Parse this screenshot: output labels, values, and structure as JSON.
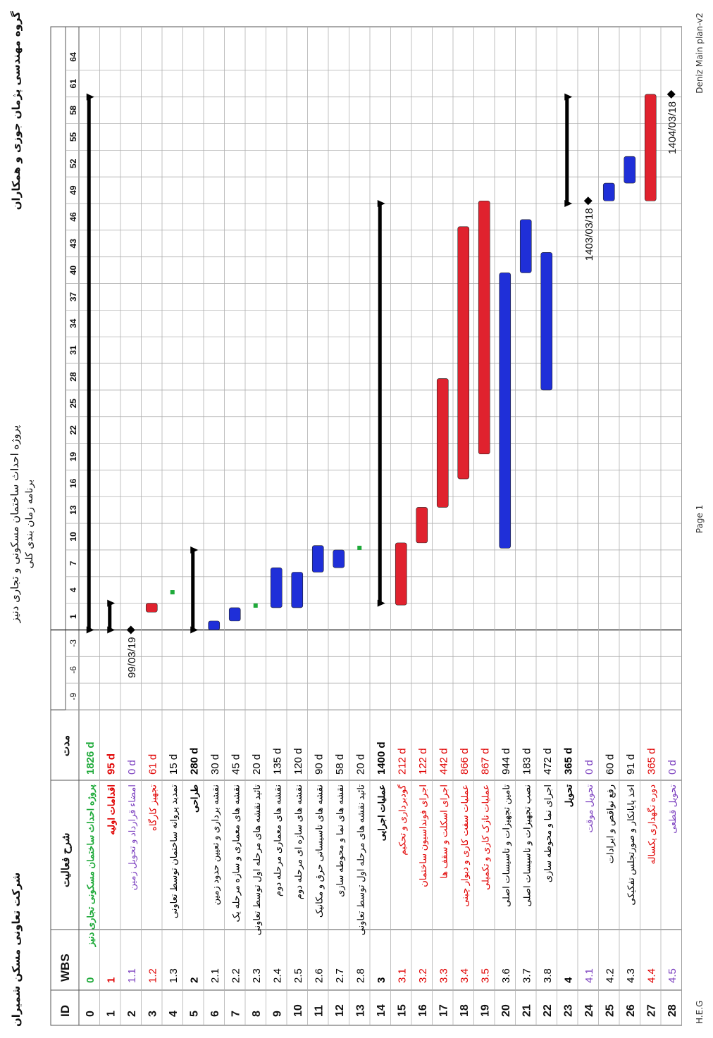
{
  "header": {
    "company": "شرکت تعاونی مسکن شمیران",
    "project_title": "پروژه احداث ساختمان مسکونی و تجاری دنیز",
    "schedule_title": "برنامه زمان بندی کلی",
    "group": "گروه مهندسی پژمان جوزی و همکاران"
  },
  "footer": {
    "left": "H.E.G",
    "center": "Page 1",
    "right": "Deniz Main plan-v2"
  },
  "table_headers": {
    "id": "ID",
    "wbs": "WBS",
    "name": "شرح فعالیت",
    "duration": "مدت"
  },
  "timescale_labels": [
    "-9",
    "-6",
    "-3",
    "1",
    "4",
    "7",
    "10",
    "13",
    "16",
    "19",
    "22",
    "25",
    "28",
    "31",
    "34",
    "37",
    "40",
    "43",
    "46",
    "49",
    "52",
    "55",
    "58",
    "61",
    "64"
  ],
  "colors": {
    "green": "#1faa3a",
    "red": "#e00000",
    "purple": "#7b3fbf",
    "black": "#000000",
    "bar_red": "#e0222e",
    "bar_blue": "#1f2fd8",
    "bar_black": "#333333",
    "grid": "#b0b0b0"
  },
  "tasks": [
    {
      "id": "0",
      "wbs": "0",
      "name": "پروژه احداث ساختمان مسکونی تجاری دنیز",
      "duration": "1826 d",
      "color": "green",
      "bold": true,
      "bar": "summary",
      "start": 1,
      "finish": 61
    },
    {
      "id": "1",
      "wbs": "1",
      "name": "اقدامات اولیه",
      "duration": "95 d",
      "color": "red",
      "bold": true,
      "bar": "summary",
      "start": 1,
      "finish": 4
    },
    {
      "id": "2",
      "wbs": "1.1",
      "name": "امضاء قرارداد و تحویل زمین",
      "duration": "0 d",
      "color": "purple",
      "bold": false,
      "bar": "milestone",
      "start": 1,
      "finish": 1,
      "label": "99/03/19"
    },
    {
      "id": "3",
      "wbs": "1.2",
      "name": "تجهیز کارگاه",
      "duration": "61 d",
      "color": "red",
      "bold": false,
      "bar": "red",
      "start": 3.0,
      "finish": 4.0
    },
    {
      "id": "4",
      "wbs": "1.3",
      "name": "تمدید پروانه ساختمان توسط تعاونی",
      "duration": "15 d",
      "color": "black",
      "bold": false,
      "bar": "tiny",
      "start": 5.0,
      "finish": 5.5
    },
    {
      "id": "5",
      "wbs": "2",
      "name": "طراحی",
      "duration": "280 d",
      "color": "black",
      "bold": true,
      "bar": "summary",
      "start": 1,
      "finish": 10
    },
    {
      "id": "6",
      "wbs": "2.1",
      "name": "نقشه برداری و تعیین حدود زمین",
      "duration": "30 d",
      "color": "black",
      "bold": false,
      "bar": "blue",
      "start": 1.0,
      "finish": 2.0
    },
    {
      "id": "7",
      "wbs": "2.2",
      "name": "نقشه های معماری و سازه مرحله یک",
      "duration": "45 d",
      "color": "black",
      "bold": false,
      "bar": "blue",
      "start": 2.0,
      "finish": 3.5
    },
    {
      "id": "8",
      "wbs": "2.3",
      "name": "تائید نقشه های مرحله اول توسط تعاونی",
      "duration": "20 d",
      "color": "black",
      "bold": false,
      "bar": "tiny",
      "start": 3.5,
      "finish": 4.1
    },
    {
      "id": "9",
      "wbs": "2.4",
      "name": "نقشه های معماری مرحله دوم",
      "duration": "135 d",
      "color": "black",
      "bold": false,
      "bar": "blue",
      "start": 3.5,
      "finish": 8.0
    },
    {
      "id": "10",
      "wbs": "2.5",
      "name": "نقشه های سازه ای مرحله دوم",
      "duration": "120 d",
      "color": "black",
      "bold": false,
      "bar": "blue",
      "start": 3.5,
      "finish": 7.5
    },
    {
      "id": "11",
      "wbs": "2.6",
      "name": "نقشه های تاسیساتی حرق و مکانیک",
      "duration": "90 d",
      "color": "black",
      "bold": false,
      "bar": "blue",
      "start": 7.5,
      "finish": 10.5
    },
    {
      "id": "12",
      "wbs": "2.7",
      "name": "نقشه های نما و محوطه سازی",
      "duration": "58 d",
      "color": "black",
      "bold": false,
      "bar": "blue",
      "start": 8.0,
      "finish": 10.0
    },
    {
      "id": "13",
      "wbs": "2.8",
      "name": "تائید نقشه های مرحله اول توسط تعاونی",
      "duration": "20 d",
      "color": "black",
      "bold": false,
      "bar": "tiny",
      "start": 10.0,
      "finish": 10.6
    },
    {
      "id": "14",
      "wbs": "3",
      "name": "عملیات اجرایی",
      "duration": "1400 d",
      "color": "black",
      "bold": true,
      "bar": "summary",
      "start": 4,
      "finish": 49
    },
    {
      "id": "15",
      "wbs": "3.1",
      "name": "گودبرداری و تحکیم",
      "duration": "212 d",
      "color": "red",
      "bold": false,
      "bar": "red",
      "start": 3.8,
      "finish": 10.8
    },
    {
      "id": "16",
      "wbs": "3.2",
      "name": "اجرای فونداسیون ساختمان",
      "duration": "122 d",
      "color": "red",
      "bold": false,
      "bar": "red",
      "start": 10.8,
      "finish": 14.8
    },
    {
      "id": "17",
      "wbs": "3.3",
      "name": "اجرای اسکلت و سقف ها",
      "duration": "442 d",
      "color": "red",
      "bold": false,
      "bar": "red",
      "start": 14.8,
      "finish": 29.3
    },
    {
      "id": "18",
      "wbs": "3.4",
      "name": "عملیات سفت کاری و دیوار چینی",
      "duration": "866 d",
      "color": "red",
      "bold": false,
      "bar": "red",
      "start": 18.0,
      "finish": 46.4
    },
    {
      "id": "19",
      "wbs": "3.5",
      "name": "عملیات نازک کاری و تکمیلی",
      "duration": "867 d",
      "color": "red",
      "bold": false,
      "bar": "red",
      "start": 20.8,
      "finish": 49.3
    },
    {
      "id": "20",
      "wbs": "3.6",
      "name": "تامین تجهیزات و تاسیسات اصلی",
      "duration": "944 d",
      "color": "black",
      "bold": false,
      "bar": "blue",
      "start": 10.2,
      "finish": 41.2
    },
    {
      "id": "21",
      "wbs": "3.7",
      "name": "نصب تجهیزات و تاسیسات اصلی",
      "duration": "183 d",
      "color": "black",
      "bold": false,
      "bar": "blue",
      "start": 41.2,
      "finish": 47.2
    },
    {
      "id": "22",
      "wbs": "3.8",
      "name": "اجرای نما و محوطه سازی",
      "duration": "472 d",
      "color": "black",
      "bold": false,
      "bar": "blue",
      "start": 28.0,
      "finish": 43.5
    },
    {
      "id": "23",
      "wbs": "4",
      "name": "تحویل",
      "duration": "365 d",
      "color": "black",
      "bold": true,
      "bar": "summary",
      "start": 49,
      "finish": 61
    },
    {
      "id": "24",
      "wbs": "4.1",
      "name": "تحویل موقت",
      "duration": "0 d",
      "color": "purple",
      "bold": false,
      "bar": "milestone",
      "start": 49.3,
      "finish": 49.3,
      "label": "1403/03/18"
    },
    {
      "id": "25",
      "wbs": "4.2",
      "name": "رفع نواقص و ایرادات",
      "duration": "60 d",
      "color": "black",
      "bold": false,
      "bar": "blue",
      "start": 49.3,
      "finish": 51.3
    },
    {
      "id": "26",
      "wbs": "4.3",
      "name": "اخذ پایانکار و صورتجلس تفکیکی",
      "duration": "91 d",
      "color": "black",
      "bold": false,
      "bar": "blue",
      "start": 51.3,
      "finish": 54.3
    },
    {
      "id": "27",
      "wbs": "4.4",
      "name": "دوره نگهداری یکساله",
      "duration": "365 d",
      "color": "red",
      "bold": false,
      "bar": "red",
      "start": 49.3,
      "finish": 61.3
    },
    {
      "id": "28",
      "wbs": "4.5",
      "name": "تحویل قطعی",
      "duration": "0 d",
      "color": "purple",
      "bold": false,
      "bar": "milestone",
      "start": 61.3,
      "finish": 61.3,
      "label": "1404/03/18"
    }
  ]
}
